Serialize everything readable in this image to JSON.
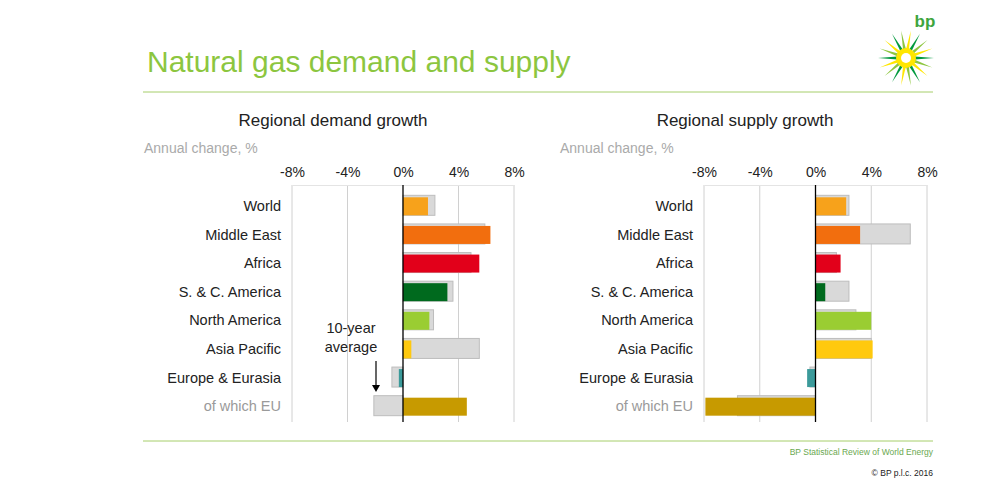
{
  "title": "Natural gas demand and supply",
  "logo": "bp",
  "source": "BP Statistical Review of World Energy",
  "copyright": "© BP p.l.c. 2016",
  "chart_data": [
    {
      "type": "bar",
      "orientation": "horizontal",
      "title": "Regional demand growth",
      "subtitle": "Annual change, %",
      "annotation": "10-year average",
      "categories": [
        "World",
        "Middle East",
        "Africa",
        "S. & C. America",
        "North America",
        "Asia Pacific",
        "Europe & Eurasia",
        "of which EU"
      ],
      "xlim": [
        -8,
        8
      ],
      "xticks": [
        {
          "value": -8,
          "label": "-8%"
        },
        {
          "value": -4,
          "label": "-4%"
        },
        {
          "value": 0,
          "label": "0%"
        },
        {
          "value": 4,
          "label": "4%"
        },
        {
          "value": 8,
          "label": "8%"
        }
      ],
      "grid": true,
      "series": [
        {
          "color": "#d9d9d9",
          "values": [
            2.3,
            5.9,
            4.9,
            3.6,
            2.2,
            5.5,
            -0.8,
            -2.1
          ]
        },
        {
          "colors": [
            "#f7a21b",
            "#f26e0e",
            "#e2001a",
            "#006a1e",
            "#9acd32",
            "#ffc90e",
            "#3b9a9a",
            "#c79a00"
          ],
          "values": [
            1.8,
            6.3,
            5.5,
            3.2,
            1.9,
            0.6,
            -0.3,
            4.6
          ]
        }
      ]
    },
    {
      "type": "bar",
      "orientation": "horizontal",
      "title": "Regional supply growth",
      "subtitle": "Annual change, %",
      "categories": [
        "World",
        "Middle East",
        "Africa",
        "S. & C. America",
        "North America",
        "Asia Pacific",
        "Europe & Eurasia",
        "of which EU"
      ],
      "xlim": [
        -8,
        8
      ],
      "xticks": [
        {
          "value": -8,
          "label": "-8%"
        },
        {
          "value": -4,
          "label": "-4%"
        },
        {
          "value": 0,
          "label": "0%"
        },
        {
          "value": 4,
          "label": "4%"
        },
        {
          "value": 8,
          "label": "8%"
        }
      ],
      "grid": true,
      "series": [
        {
          "color": "#d9d9d9",
          "values": [
            2.4,
            6.8,
            1.5,
            2.4,
            2.9,
            4.0,
            -0.4,
            -5.6
          ]
        },
        {
          "colors": [
            "#f7a21b",
            "#f26e0e",
            "#e2001a",
            "#006a1e",
            "#9acd32",
            "#ffc90e",
            "#3b9a9a",
            "#c79a00"
          ],
          "values": [
            2.2,
            3.2,
            1.8,
            0.7,
            4.0,
            4.1,
            -0.6,
            -7.9
          ]
        }
      ]
    }
  ]
}
